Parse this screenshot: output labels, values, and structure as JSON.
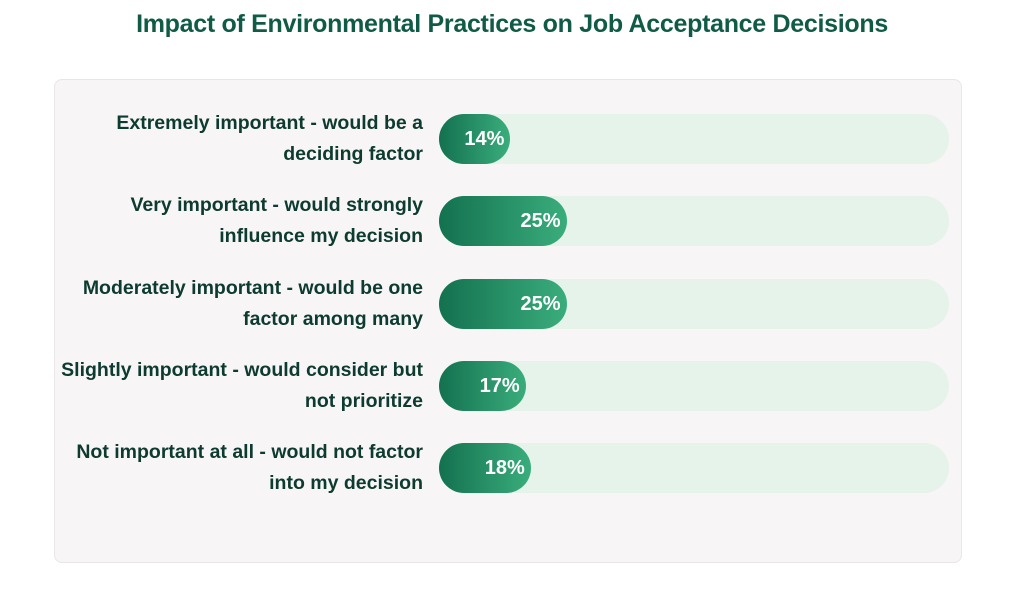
{
  "chart_data": {
    "type": "bar",
    "orientation": "horizontal",
    "title": "Impact of Environmental Practices on Job Acceptance Decisions",
    "categories": [
      "Extremely important - would be a deciding factor",
      "Very important - would strongly influence my decision",
      "Moderately important - would be one factor among many",
      "Slightly important - would consider but not prioritize",
      "Not important at all - would not factor into my decision"
    ],
    "values": [
      14,
      25,
      25,
      17,
      18
    ],
    "value_labels": [
      "14%",
      "25%",
      "25%",
      "17%",
      "18%"
    ],
    "xlim": [
      0,
      100
    ],
    "color": "#137150"
  }
}
